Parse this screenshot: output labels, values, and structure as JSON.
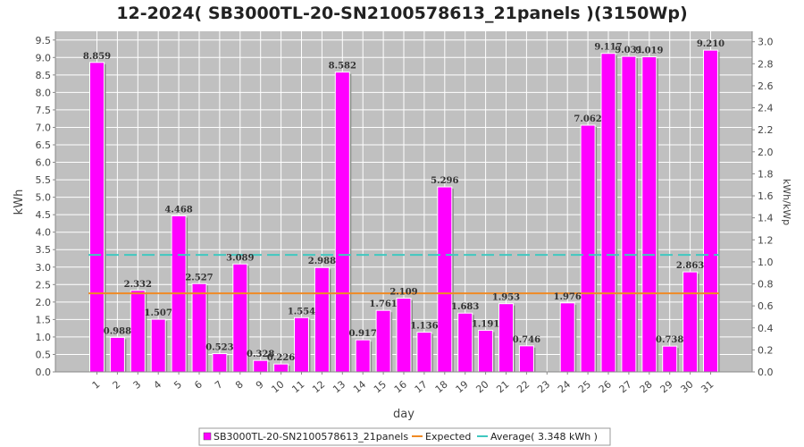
{
  "chart_data": {
    "type": "bar",
    "title": "12-2024( SB3000TL-20-SN2100578613_21panels )(3150Wp)",
    "xlabel": "day",
    "ylabel": "kWh",
    "y2label": "kWh/kWp",
    "categories": [
      "1",
      "2",
      "3",
      "4",
      "5",
      "6",
      "7",
      "8",
      "9",
      "10",
      "11",
      "12",
      "13",
      "14",
      "15",
      "16",
      "17",
      "18",
      "19",
      "20",
      "21",
      "22",
      "23",
      "24",
      "25",
      "26",
      "27",
      "28",
      "29",
      "30",
      "31"
    ],
    "series": [
      {
        "name": "SB3000TL-20-SN2100578613_21panels",
        "color": "#ff00ff",
        "values": [
          8.859,
          0.988,
          2.332,
          1.507,
          4.468,
          2.527,
          0.523,
          3.089,
          0.328,
          0.226,
          1.554,
          2.988,
          8.582,
          0.917,
          1.761,
          2.109,
          1.136,
          5.296,
          1.683,
          1.191,
          1.953,
          0.746,
          0.0,
          1.976,
          7.062,
          9.117,
          9.031,
          9.019,
          0.738,
          2.863,
          9.21
        ],
        "labels": [
          "8.859",
          "0.988",
          "2.332",
          "1.507",
          "4.468",
          "2.527",
          "0.523",
          "3.089",
          "0.328",
          "0.226",
          "1.554",
          "2.988",
          "8.582",
          "0.917",
          "1.761",
          "2.109",
          "1.136",
          "5.296",
          "1.683",
          "1.191",
          "1.953",
          "0.746",
          "",
          "1.976",
          "7.062",
          "9.117",
          "9.031",
          "9.019",
          "0.738",
          "2.863",
          "9.210"
        ]
      }
    ],
    "expected": {
      "name": "Expected",
      "value": 2.25,
      "color": "#f08a24"
    },
    "average": {
      "name": "Average( 3.348 kWh )",
      "value": 3.348,
      "color": "#40c8c0"
    },
    "ylim": [
      0,
      9.75
    ],
    "yticks": [
      "0.0",
      "0.5",
      "1.0",
      "1.5",
      "2.0",
      "2.5",
      "3.0",
      "3.5",
      "4.0",
      "4.5",
      "5.0",
      "5.5",
      "6.0",
      "6.5",
      "7.0",
      "7.5",
      "8.0",
      "8.5",
      "9.0",
      "9.5"
    ],
    "y2lim": [
      0,
      3.095
    ],
    "y2ticks": [
      "0.0",
      "0.2",
      "0.4",
      "0.6",
      "0.8",
      "1.0",
      "1.2",
      "1.4",
      "1.6",
      "1.8",
      "2.0",
      "2.2",
      "2.4",
      "2.6",
      "2.8",
      "3.0"
    ],
    "grid": true,
    "legend_position": "bottom"
  }
}
